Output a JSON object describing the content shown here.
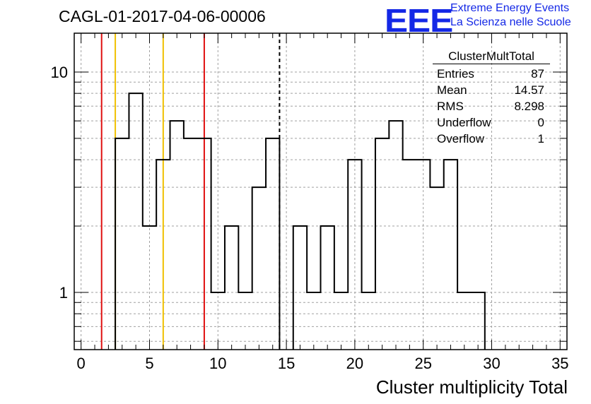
{
  "title": "CAGL-01-2017-04-06-00006",
  "logo": {
    "mark": "EEE",
    "line1": "Extreme Energy Events",
    "line2": "La Scienza nelle Scuole",
    "color": "#1428e6"
  },
  "stats": {
    "name": "ClusterMultTotal",
    "rows": [
      {
        "label": "Entries",
        "value": "87"
      },
      {
        "label": "Mean",
        "value": "14.57"
      },
      {
        "label": "RMS",
        "value": "8.298"
      },
      {
        "label": "Underflow",
        "value": "0"
      },
      {
        "label": "Overflow",
        "value": "1"
      }
    ]
  },
  "chart_data": {
    "type": "bar",
    "style": "step-histogram",
    "title": "CAGL-01-2017-04-06-00006",
    "xlabel": "Cluster multiplicity Total",
    "ylabel": "",
    "xlim": [
      -0.5,
      35.5
    ],
    "ylim": [
      0.55,
      15
    ],
    "y_scale": "log",
    "grid": true,
    "bin_width": 1,
    "x_ticks": [
      0,
      5,
      10,
      15,
      20,
      25,
      30,
      35
    ],
    "y_ticks": [
      1,
      10
    ],
    "bins": [
      {
        "x": 3,
        "count": 5
      },
      {
        "x": 4,
        "count": 8
      },
      {
        "x": 5,
        "count": 2
      },
      {
        "x": 6,
        "count": 4
      },
      {
        "x": 7,
        "count": 6
      },
      {
        "x": 8,
        "count": 5
      },
      {
        "x": 9,
        "count": 5
      },
      {
        "x": 10,
        "count": 1
      },
      {
        "x": 11,
        "count": 2
      },
      {
        "x": 12,
        "count": 1
      },
      {
        "x": 13,
        "count": 3
      },
      {
        "x": 14,
        "count": 5
      },
      {
        "x": 16,
        "count": 2
      },
      {
        "x": 17,
        "count": 1
      },
      {
        "x": 18,
        "count": 2
      },
      {
        "x": 19,
        "count": 1
      },
      {
        "x": 20,
        "count": 4
      },
      {
        "x": 21,
        "count": 1
      },
      {
        "x": 22,
        "count": 5
      },
      {
        "x": 23,
        "count": 6
      },
      {
        "x": 24,
        "count": 4
      },
      {
        "x": 25,
        "count": 4
      },
      {
        "x": 26,
        "count": 3
      },
      {
        "x": 27,
        "count": 4
      },
      {
        "x": 28,
        "count": 1
      },
      {
        "x": 29,
        "count": 1
      }
    ],
    "reference_lines": [
      {
        "x": 1.5,
        "color": "#e01010",
        "style": "solid"
      },
      {
        "x": 2.5,
        "color": "#f0c000",
        "style": "solid"
      },
      {
        "x": 6,
        "color": "#f0c000",
        "style": "solid"
      },
      {
        "x": 9,
        "color": "#e01010",
        "style": "solid"
      },
      {
        "x": 14.5,
        "color": "#000000",
        "style": "dashed"
      }
    ]
  }
}
